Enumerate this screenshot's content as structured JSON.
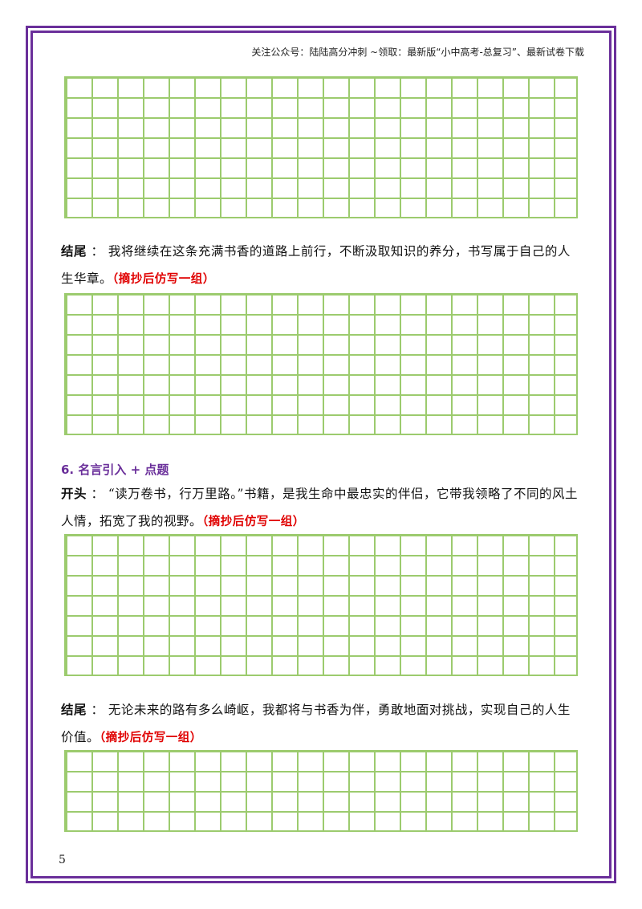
{
  "header": {
    "note": "关注公众号：陆陆高分冲刺 ~领取：最新版“小中高考-总复习”、最新试卷下载"
  },
  "blocks": {
    "ending1": {
      "label": "结尾",
      "sep": " ： ",
      "text": "我将继续在这条充满书香的道路上前行，不断汲取知识的养分，书写属于自己的人生华章。",
      "note": "（摘抄后仿写一组）"
    },
    "section6": {
      "title": "6.  名言引入 + 点题"
    },
    "opening6": {
      "label": "开头",
      "sep": " ： ",
      "text": "“读万卷书，行万里路。”书籍，是我生命中最忠实的伴侣，它带我领略了不同的风土人情，拓宽了我的视野。",
      "note": "（摘抄后仿写一组）"
    },
    "ending6": {
      "label": "结尾",
      "sep": " ： ",
      "text": "无论未来的路有多么崎岖，我都将与书香为伴，勇敢地面对挑战，实现自己的人生价值。",
      "note": "（摘抄后仿写一组）"
    }
  },
  "page": {
    "number": "5"
  },
  "colors": {
    "border": "#6a2f9a",
    "grid": "#9ccb6e",
    "note": "#e00000",
    "section_title": "#6a2f9a"
  }
}
